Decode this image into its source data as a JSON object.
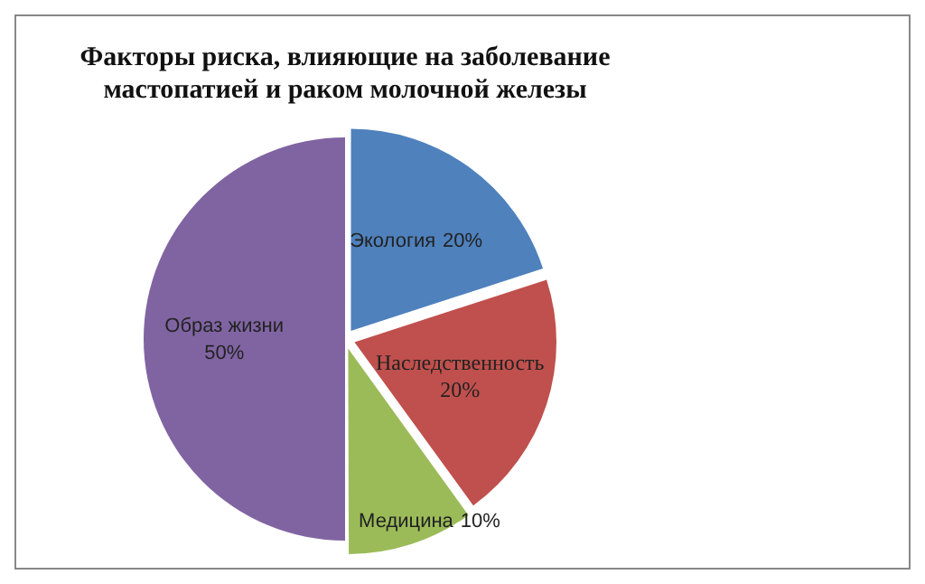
{
  "chart_data": {
    "type": "pie",
    "title": "Факторы риска, влияющие на заболевание\nмастопатией и раком молочной железы",
    "categories": [
      "Экология",
      "Наследственность",
      "Медицина",
      "Образ жизни"
    ],
    "values": [
      20,
      20,
      10,
      50
    ],
    "value_labels": [
      "20%",
      "20%",
      "10%",
      "50%"
    ],
    "colors": [
      "#4f81bd",
      "#c0504d",
      "#9bbb59",
      "#8064a2"
    ],
    "legend": false
  }
}
